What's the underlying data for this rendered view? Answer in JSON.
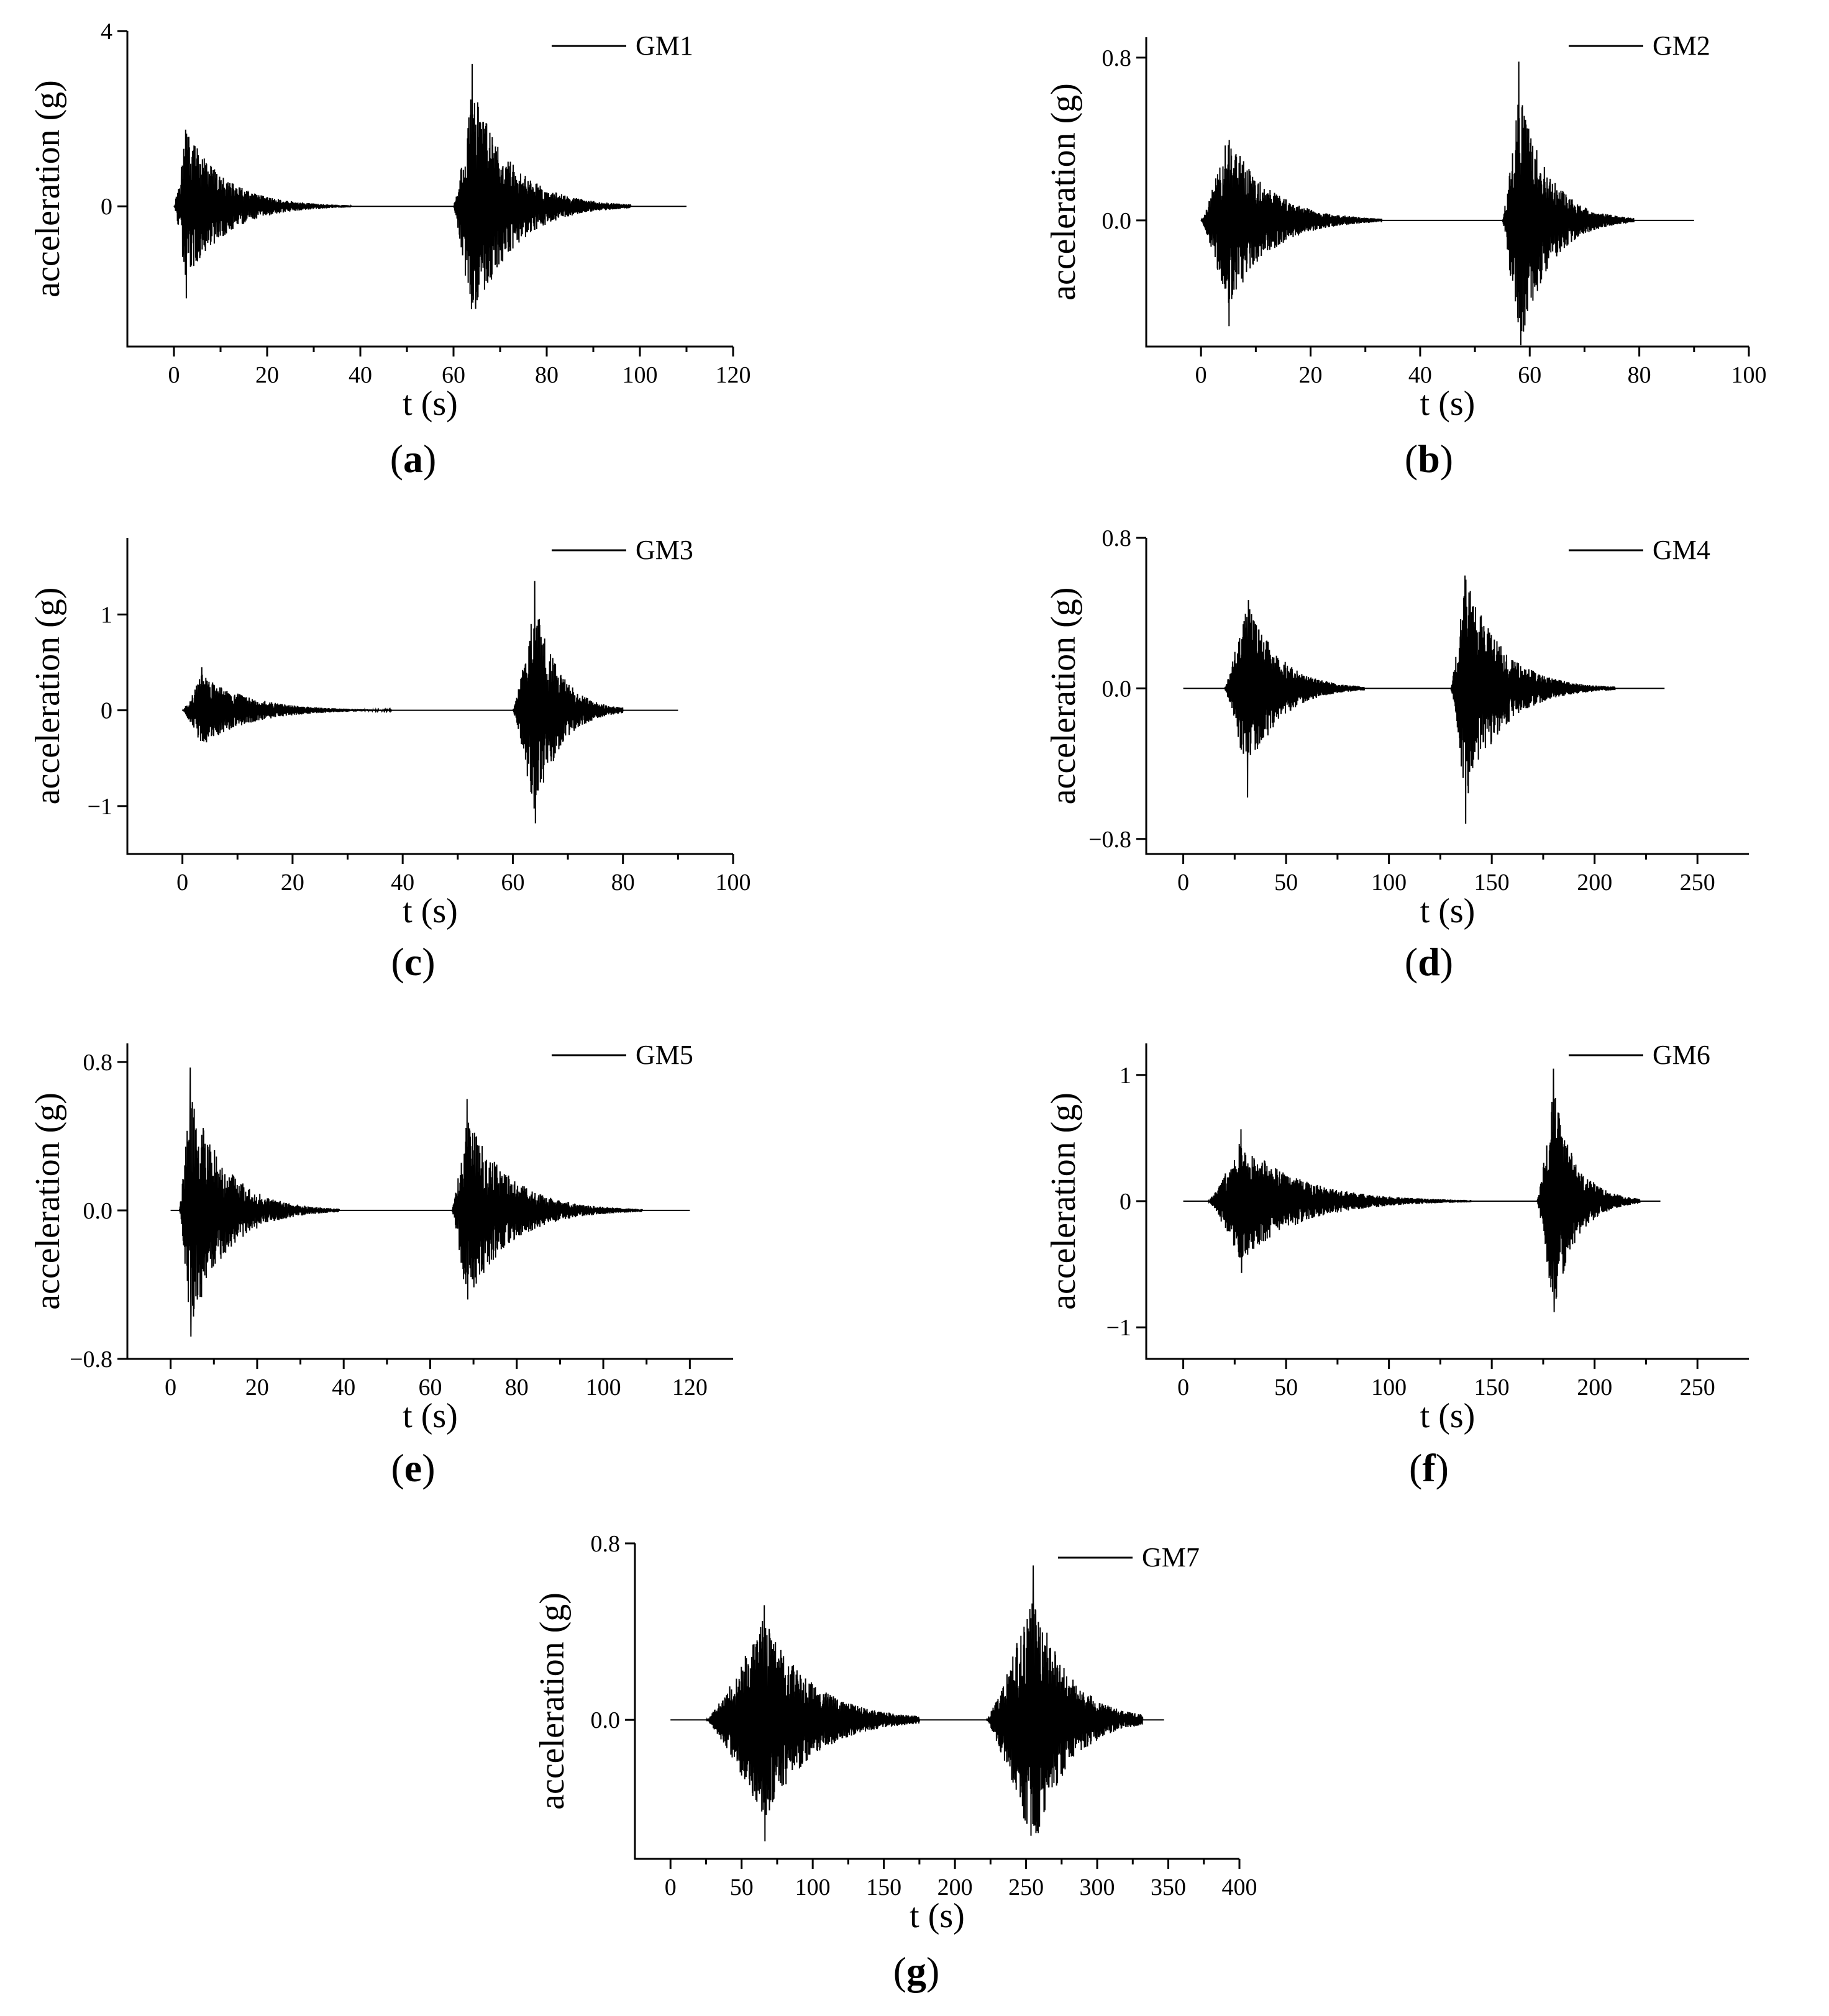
{
  "chart_data": [
    {
      "type": "line",
      "panel_label": "a",
      "xlabel": "t (s)",
      "ylabel": "acceleration (g)",
      "xlim": [
        -10,
        120
      ],
      "ylim": [
        -3.2,
        4
      ],
      "xticks": [
        0,
        20,
        40,
        60,
        80,
        100,
        120
      ],
      "xtick_labels": [
        "0",
        "20",
        "40",
        "60",
        "80",
        "100",
        "120"
      ],
      "yticks": [
        0,
        4
      ],
      "ytick_labels": [
        "0",
        "4"
      ],
      "series": [
        {
          "name": "GM1",
          "duration": 110,
          "bursts": [
            {
              "start": 0,
              "end": 38,
              "peak_time": 2.5,
              "pos_peak": 1.75,
              "neg_peak": -2.1
            },
            {
              "start": 60,
              "end": 98,
              "peak_time": 64,
              "pos_peak": 3.25,
              "neg_peak": -2.2
            }
          ]
        }
      ]
    },
    {
      "type": "line",
      "panel_label": "b",
      "xlabel": "t (s)",
      "ylabel": "acceleration (g)",
      "xlim": [
        -10,
        100
      ],
      "ylim": [
        -0.62,
        0.9
      ],
      "xticks": [
        0,
        20,
        40,
        60,
        80,
        100
      ],
      "xtick_labels": [
        "0",
        "20",
        "40",
        "60",
        "80",
        "100"
      ],
      "yticks": [
        0.0,
        0.8
      ],
      "ytick_labels": [
        "0.0",
        "0.8"
      ],
      "series": [
        {
          "name": "GM2",
          "duration": 90,
          "bursts": [
            {
              "start": 0,
              "end": 33,
              "peak_time": 5,
              "pos_peak": 0.37,
              "neg_peak": -0.52
            },
            {
              "start": 55,
              "end": 79,
              "peak_time": 58,
              "pos_peak": 0.78,
              "neg_peak": -0.48
            }
          ]
        }
      ]
    },
    {
      "type": "line",
      "panel_label": "c",
      "xlabel": "t (s)",
      "ylabel": "acceleration (g)",
      "xlim": [
        -10,
        100
      ],
      "ylim": [
        -1.5,
        1.8
      ],
      "xticks": [
        0,
        20,
        40,
        60,
        80,
        100
      ],
      "xtick_labels": [
        "0",
        "20",
        "40",
        "60",
        "80",
        "100"
      ],
      "yticks": [
        -1,
        0,
        1
      ],
      "ytick_labels": [
        "−1",
        "0",
        "1"
      ],
      "series": [
        {
          "name": "GM3",
          "duration": 90,
          "bursts": [
            {
              "start": 0,
              "end": 38,
              "peak_time": 3.5,
              "pos_peak": 0.45,
              "neg_peak": -0.32
            },
            {
              "start": 60,
              "end": 80,
              "peak_time": 64,
              "pos_peak": 1.35,
              "neg_peak": -1.18
            }
          ]
        }
      ]
    },
    {
      "type": "line",
      "panel_label": "d",
      "xlabel": "t (s)",
      "ylabel": "acceleration (g)",
      "xlim": [
        -18,
        275
      ],
      "ylim": [
        -0.88,
        0.8
      ],
      "xticks": [
        0,
        50,
        100,
        150,
        200,
        250
      ],
      "xtick_labels": [
        "0",
        "50",
        "100",
        "150",
        "200",
        "250"
      ],
      "yticks": [
        -0.8,
        0.0,
        0.8
      ],
      "ytick_labels": [
        "−0.8",
        "0.0",
        "0.8"
      ],
      "series": [
        {
          "name": "GM4",
          "duration": 234,
          "bursts": [
            {
              "start": 20,
              "end": 88,
              "peak_time": 31,
              "pos_peak": 0.38,
              "neg_peak": -0.58
            },
            {
              "start": 130,
              "end": 210,
              "peak_time": 137,
              "pos_peak": 0.6,
              "neg_peak": -0.72
            }
          ]
        }
      ]
    },
    {
      "type": "line",
      "panel_label": "e",
      "xlabel": "t (s)",
      "ylabel": "acceleration (g)",
      "xlim": [
        -10,
        130
      ],
      "ylim": [
        -0.8,
        0.9
      ],
      "xticks": [
        0,
        20,
        40,
        60,
        80,
        100,
        120
      ],
      "xtick_labels": [
        "0",
        "20",
        "40",
        "60",
        "80",
        "100",
        "120"
      ],
      "yticks": [
        -0.8,
        0.0,
        0.8
      ],
      "ytick_labels": [
        "−0.8",
        "0.0",
        "0.8"
      ],
      "series": [
        {
          "name": "GM5",
          "duration": 120,
          "bursts": [
            {
              "start": 2,
              "end": 39,
              "peak_time": 4.5,
              "pos_peak": 0.77,
              "neg_peak": -0.68
            },
            {
              "start": 65,
              "end": 109,
              "peak_time": 68.5,
              "pos_peak": 0.6,
              "neg_peak": -0.48
            }
          ]
        }
      ]
    },
    {
      "type": "line",
      "panel_label": "f",
      "xlabel": "t (s)",
      "ylabel": "acceleration (g)",
      "xlim": [
        -18,
        275
      ],
      "ylim": [
        -1.25,
        1.25
      ],
      "xticks": [
        0,
        50,
        100,
        150,
        200,
        250
      ],
      "xtick_labels": [
        "0",
        "50",
        "100",
        "150",
        "200",
        "250"
      ],
      "yticks": [
        -1,
        0,
        1
      ],
      "ytick_labels": [
        "−1",
        "0",
        "1"
      ],
      "series": [
        {
          "name": "GM6",
          "duration": 232,
          "bursts": [
            {
              "start": 12,
              "end": 140,
              "peak_time": 28,
              "pos_peak": 0.57,
              "neg_peak": -0.57
            },
            {
              "start": 172,
              "end": 222,
              "peak_time": 180,
              "pos_peak": 1.05,
              "neg_peak": -0.88
            }
          ]
        }
      ]
    },
    {
      "type": "line",
      "panel_label": "g",
      "xlabel": "t (s)",
      "ylabel": "acceleration (g)",
      "xlim": [
        -25,
        400
      ],
      "ylim": [
        -0.63,
        0.8
      ],
      "xticks": [
        0,
        50,
        100,
        150,
        200,
        250,
        300,
        350,
        400
      ],
      "xtick_labels": [
        "0",
        "50",
        "100",
        "150",
        "200",
        "250",
        "300",
        "350",
        "400"
      ],
      "yticks": [
        0.0,
        0.8
      ],
      "ytick_labels": [
        "0.0",
        "0.8"
      ],
      "series": [
        {
          "name": "GM7",
          "duration": 347,
          "bursts": [
            {
              "start": 25,
              "end": 175,
              "peak_time": 66,
              "pos_peak": 0.52,
              "neg_peak": -0.55
            },
            {
              "start": 222,
              "end": 332,
              "peak_time": 255,
              "pos_peak": 0.7,
              "neg_peak": -0.48
            }
          ]
        }
      ]
    }
  ]
}
